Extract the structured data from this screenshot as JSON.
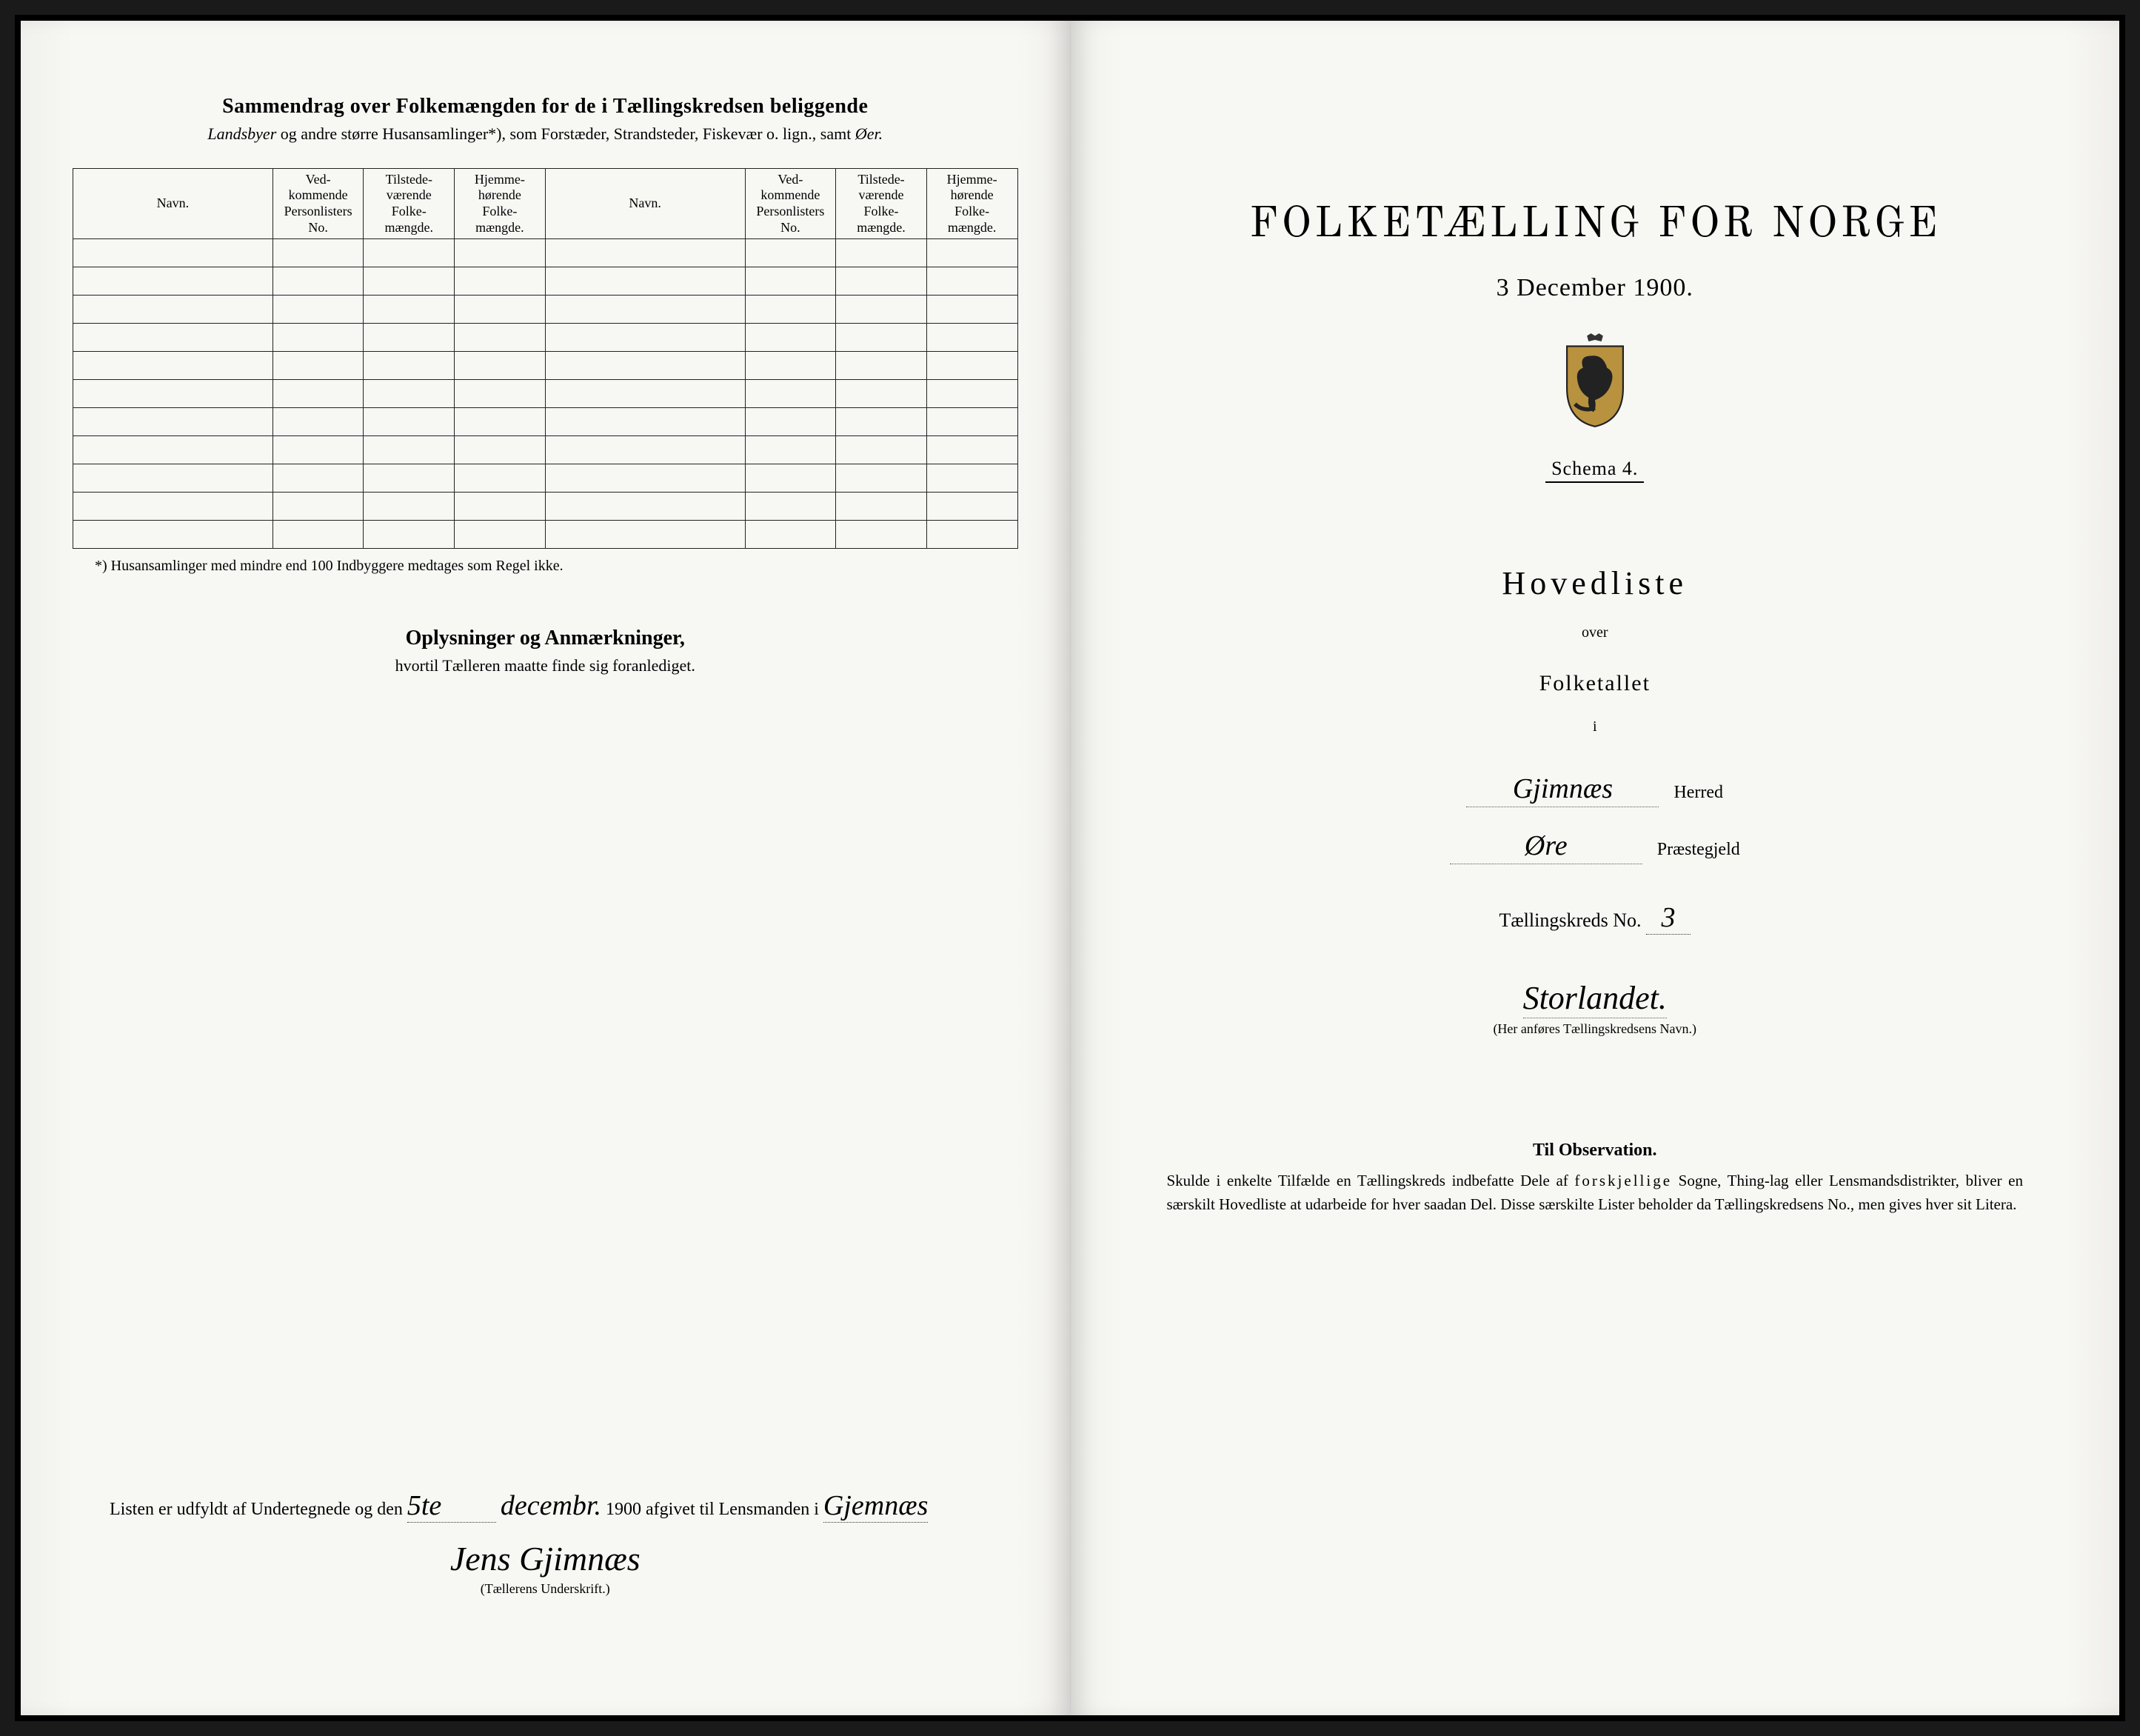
{
  "left": {
    "title": "Sammendrag over Folkemængden for de i Tællingskredsen beliggende",
    "subtitle_italic": "Landsbyer",
    "subtitle_rest": " og andre større Husansamlinger*), som Forstæder, Strandsteder, Fiskevær o. lign., samt ",
    "subtitle_italic2": "Øer.",
    "columns": {
      "navn": "Navn.",
      "personlisters": "Ved-\nkommende\nPersonlisters\nNo.",
      "tilstede": "Tilstede-\nværende\nFolke-\nmængde.",
      "hjemme": "Hjemme-\nhørende\nFolke-\nmængde."
    },
    "footnote": "*)  Husansamlinger med mindre end 100 Indbyggere medtages som Regel ikke.",
    "oplysninger_title": "Oplysninger og Anmærkninger,",
    "oplysninger_sub": "hvortil Tælleren maatte finde sig foranlediget.",
    "bottom_prefix": "Listen er udfyldt af Undertegnede og den ",
    "bottom_date_day": "5te",
    "bottom_date_month": "decembr.",
    "bottom_year": " 1900 afgivet til Lensmanden i ",
    "bottom_place": "Gjemnæs",
    "signature": "Jens Gjimnæs",
    "signature_caption": "(Tællerens Underskrift.)"
  },
  "right": {
    "title": "FOLKETÆLLING FOR NORGE",
    "date": "3 December 1900.",
    "schema": "Schema 4.",
    "hovedliste": "Hovedliste",
    "over": "over",
    "folketallet": "Folketallet",
    "i": "i",
    "herred_value": "Gjimnæs",
    "herred_label": "Herred",
    "praeste_value": "Øre",
    "praeste_label": "Præstegjeld",
    "kreds_label": "Tællingskreds No.",
    "kreds_no": "3",
    "kreds_name": "Storlandet.",
    "kreds_caption": "(Her anføres Tællingskredsens Navn.)",
    "obs_title": "Til Observation.",
    "obs_text_1": "Skulde i enkelte Tilfælde en Tællingskreds indbefatte Dele af ",
    "obs_text_spaced": "forskjellige",
    "obs_text_2": " Sogne, Thing-lag eller Lensmandsdistrikter, bliver en særskilt Hovedliste at udarbeide for hver saadan Del. Disse særskilte Lister beholder da Tællingskredsens No., men gives hver sit Litera."
  },
  "table_rows": 11,
  "colors": {
    "paper": "#f7f7f4",
    "ink": "#1a1a1a",
    "border": "#222222"
  }
}
